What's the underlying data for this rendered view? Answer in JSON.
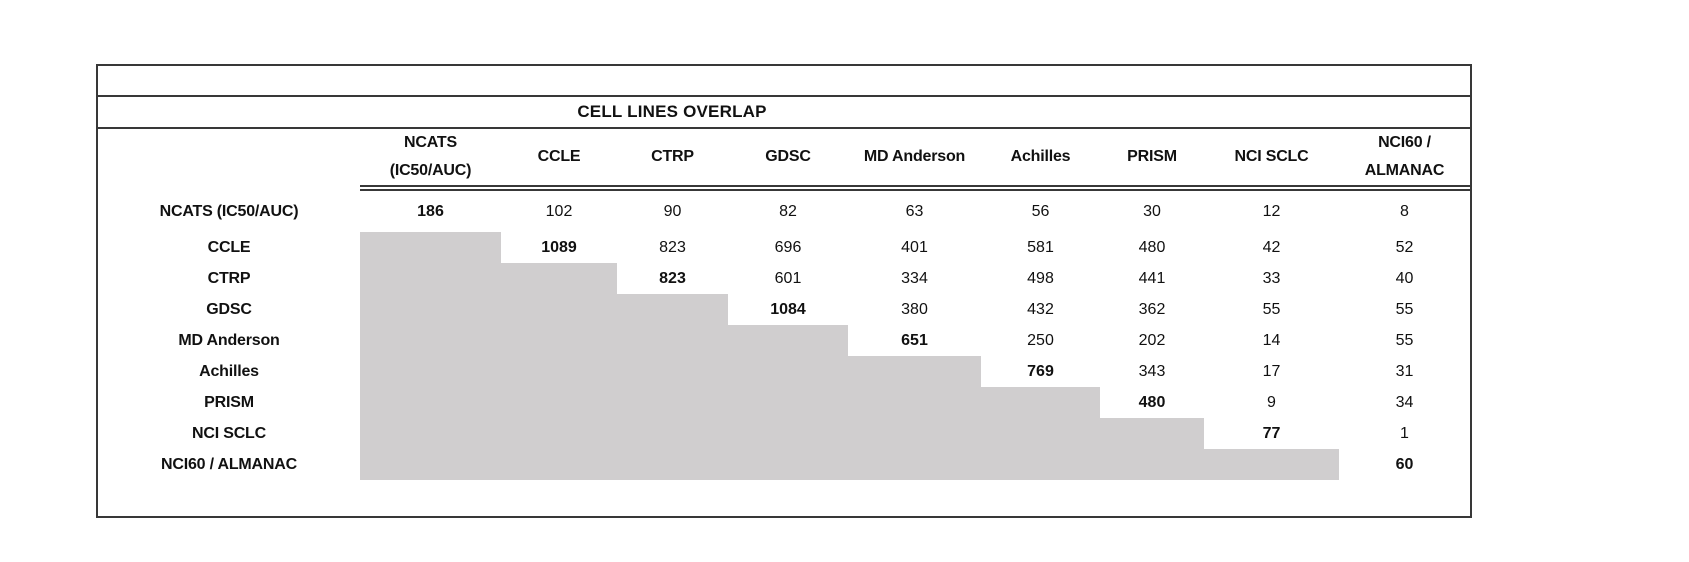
{
  "table": {
    "title": "CELL LINES OVERLAP",
    "headers": [
      [
        "NCATS",
        "(IC50/AUC)"
      ],
      [
        "CCLE"
      ],
      [
        "CTRP"
      ],
      [
        "GDSC"
      ],
      [
        "MD Anderson"
      ],
      [
        "Achilles"
      ],
      [
        "PRISM"
      ],
      [
        "NCI SCLC"
      ],
      [
        "NCI60 /",
        "ALMANAC"
      ]
    ],
    "rows": [
      {
        "label": "NCATS (IC50/AUC)",
        "values": [
          "186",
          "102",
          "90",
          "82",
          "63",
          "56",
          "30",
          "12",
          "8"
        ]
      },
      {
        "label": "CCLE",
        "values": [
          "",
          "1089",
          "823",
          "696",
          "401",
          "581",
          "480",
          "42",
          "52"
        ]
      },
      {
        "label": "CTRP",
        "values": [
          "",
          "",
          "823",
          "601",
          "334",
          "498",
          "441",
          "33",
          "40"
        ]
      },
      {
        "label": "GDSC",
        "values": [
          "",
          "",
          "",
          "1084",
          "380",
          "432",
          "362",
          "55",
          "55"
        ]
      },
      {
        "label": "MD Anderson",
        "values": [
          "",
          "",
          "",
          "",
          "651",
          "250",
          "202",
          "14",
          "55"
        ]
      },
      {
        "label": "Achilles",
        "values": [
          "",
          "",
          "",
          "",
          "",
          "769",
          "343",
          "17",
          "31"
        ]
      },
      {
        "label": "PRISM",
        "values": [
          "",
          "",
          "",
          "",
          "",
          "",
          "480",
          "9",
          "34"
        ]
      },
      {
        "label": "NCI SCLC",
        "values": [
          "",
          "",
          "",
          "",
          "",
          "",
          "",
          "77",
          "1"
        ]
      },
      {
        "label": "NCI60 / ALMANAC",
        "values": [
          "",
          "",
          "",
          "",
          "",
          "",
          "",
          "",
          "60"
        ]
      }
    ],
    "colors": {
      "shaded_cell": "#d0cecf",
      "border": "#383838",
      "text": "#111111"
    }
  }
}
